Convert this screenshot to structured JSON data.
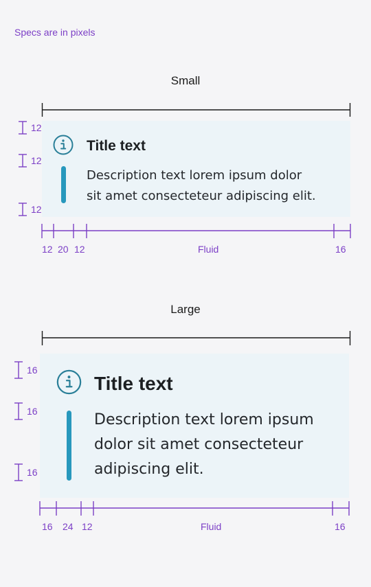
{
  "note": "Specs are in pixels",
  "small": {
    "label": "Small",
    "title": "Title text",
    "desc_line1": "Description text lorem ipsum dolor",
    "desc_line2": "sit amet consecteteur adipiscing elit.",
    "vertical_specs": [
      "12",
      "12",
      "12"
    ],
    "horizontal_specs": [
      "12",
      "20",
      "12",
      "Fluid",
      "16"
    ]
  },
  "large": {
    "label": "Large",
    "title": "Title text",
    "desc_line1": "Description text lorem ipsum",
    "desc_line2": "dolor sit amet consecteteur",
    "desc_line3": "adipiscing elit.",
    "vertical_specs": [
      "16",
      "16",
      "16"
    ],
    "horizontal_specs": [
      "16",
      "24",
      "12",
      "Fluid",
      "16"
    ]
  },
  "colors": {
    "accent": "#2798bd",
    "info_icon": "#2a7f98",
    "spec": "#7c3fc6",
    "card": "#ecf4f8"
  },
  "icons": {
    "info": "info-circle-icon"
  }
}
